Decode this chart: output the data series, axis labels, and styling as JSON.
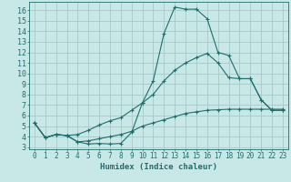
{
  "xlabel": "Humidex (Indice chaleur)",
  "bg_color": "#c8e8e8",
  "grid_color": "#a8c8c8",
  "line_color": "#1e6e6e",
  "xlim": [
    -0.5,
    23.5
  ],
  "ylim": [
    2.8,
    16.8
  ],
  "xticks": [
    0,
    1,
    2,
    3,
    4,
    5,
    6,
    7,
    8,
    9,
    10,
    11,
    12,
    13,
    14,
    15,
    16,
    17,
    18,
    19,
    20,
    21,
    22,
    23
  ],
  "yticks": [
    3,
    4,
    5,
    6,
    7,
    8,
    9,
    10,
    11,
    12,
    13,
    14,
    15,
    16
  ],
  "line1_x": [
    0,
    1,
    2,
    3,
    4,
    5,
    6,
    7,
    8,
    9,
    10,
    11,
    12,
    13,
    14,
    15,
    16,
    17,
    18,
    19,
    20,
    21,
    22,
    23
  ],
  "line1_y": [
    5.3,
    3.9,
    4.2,
    4.1,
    3.5,
    3.3,
    3.35,
    3.3,
    3.35,
    4.4,
    7.2,
    9.3,
    13.8,
    16.3,
    16.1,
    16.1,
    15.2,
    12.0,
    11.7,
    9.5,
    9.5,
    7.5,
    6.5,
    6.5
  ],
  "line2_x": [
    0,
    1,
    2,
    3,
    4,
    5,
    6,
    7,
    8,
    9,
    10,
    11,
    12,
    13,
    14,
    15,
    16,
    17,
    18,
    19,
    20,
    21,
    22,
    23
  ],
  "line2_y": [
    5.3,
    3.9,
    4.2,
    4.1,
    4.2,
    4.6,
    5.1,
    5.5,
    5.8,
    6.5,
    7.2,
    8.0,
    9.3,
    10.3,
    11.0,
    11.5,
    11.9,
    11.0,
    9.6,
    9.5,
    9.5,
    7.5,
    6.5,
    6.5
  ],
  "line3_x": [
    0,
    1,
    2,
    3,
    4,
    5,
    6,
    7,
    8,
    9,
    10,
    11,
    12,
    13,
    14,
    15,
    16,
    17,
    18,
    19,
    20,
    21,
    22,
    23
  ],
  "line3_y": [
    5.3,
    3.9,
    4.2,
    4.1,
    3.5,
    3.6,
    3.8,
    4.0,
    4.2,
    4.5,
    5.0,
    5.3,
    5.6,
    5.9,
    6.2,
    6.35,
    6.5,
    6.55,
    6.6,
    6.6,
    6.6,
    6.6,
    6.6,
    6.6
  ]
}
